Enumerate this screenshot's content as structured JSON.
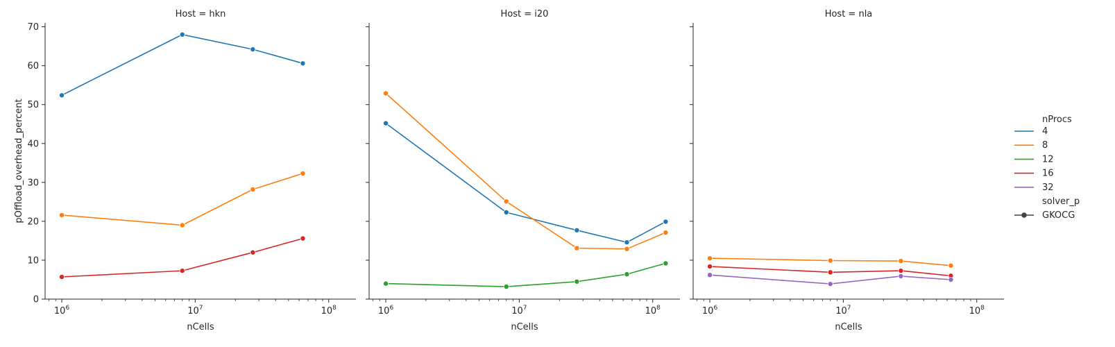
{
  "chart_data": {
    "type": "line",
    "x_scale": "log",
    "xlabel": "nCells",
    "ylabel": "pOffload_overhead_percent",
    "xlim": [
      750000,
      160000000
    ],
    "ylim": [
      0,
      71
    ],
    "x_ticks": [
      {
        "value": 1000000,
        "base": "10",
        "exp": "6"
      },
      {
        "value": 10000000,
        "base": "10",
        "exp": "7"
      },
      {
        "value": 100000000,
        "base": "10",
        "exp": "8"
      }
    ],
    "y_ticks": [
      {
        "value": 0,
        "label": "0"
      },
      {
        "value": 10,
        "label": "10"
      },
      {
        "value": 20,
        "label": "20"
      },
      {
        "value": 30,
        "label": "30"
      },
      {
        "value": 40,
        "label": "40"
      },
      {
        "value": 50,
        "label": "50"
      },
      {
        "value": 60,
        "label": "60"
      },
      {
        "value": 70,
        "label": "70"
      }
    ],
    "legend": {
      "position": "right",
      "hue_title": "nProcs",
      "hue_entries": [
        {
          "label": "4",
          "color": "#1f77b4"
        },
        {
          "label": "8",
          "color": "#ff7f0e"
        },
        {
          "label": "12",
          "color": "#2ca02c"
        },
        {
          "label": "16",
          "color": "#d62728"
        },
        {
          "label": "32",
          "color": "#9467bd"
        }
      ],
      "style_title": "solver_p",
      "style_entries": [
        {
          "label": "GKOCG",
          "color": "#444444"
        }
      ]
    },
    "facets": [
      {
        "title": "Host = hkn",
        "series": [
          {
            "name": "4",
            "color": "#1f77b4",
            "x": [
              1000000,
              8000000,
              27000000,
              64000000
            ],
            "y": [
              52.4,
              68.0,
              64.2,
              60.6
            ]
          },
          {
            "name": "8",
            "color": "#ff7f0e",
            "x": [
              1000000,
              8000000,
              27000000,
              64000000
            ],
            "y": [
              21.6,
              19.0,
              28.2,
              32.3
            ]
          },
          {
            "name": "16",
            "color": "#d62728",
            "x": [
              1000000,
              8000000,
              27000000,
              64000000
            ],
            "y": [
              5.7,
              7.3,
              12.0,
              15.6
            ]
          }
        ]
      },
      {
        "title": "Host = i20",
        "series": [
          {
            "name": "4",
            "color": "#1f77b4",
            "x": [
              1000000,
              8000000,
              27000000,
              64000000,
              125000000
            ],
            "y": [
              45.2,
              22.3,
              17.7,
              14.6,
              19.9
            ]
          },
          {
            "name": "8",
            "color": "#ff7f0e",
            "x": [
              1000000,
              8000000,
              27000000,
              64000000,
              125000000
            ],
            "y": [
              52.9,
              25.1,
              13.1,
              12.9,
              17.1
            ]
          },
          {
            "name": "12",
            "color": "#2ca02c",
            "x": [
              1000000,
              8000000,
              27000000,
              64000000,
              125000000
            ],
            "y": [
              4.0,
              3.2,
              4.5,
              6.4,
              9.2
            ]
          }
        ]
      },
      {
        "title": "Host = nla",
        "series": [
          {
            "name": "8",
            "color": "#ff7f0e",
            "x": [
              1000000,
              8000000,
              27000000,
              64000000
            ],
            "y": [
              10.5,
              9.9,
              9.8,
              8.6
            ]
          },
          {
            "name": "16",
            "color": "#d62728",
            "x": [
              1000000,
              8000000,
              27000000,
              64000000
            ],
            "y": [
              8.4,
              6.9,
              7.3,
              6.0
            ]
          },
          {
            "name": "32",
            "color": "#9467bd",
            "x": [
              1000000,
              8000000,
              27000000,
              64000000
            ],
            "y": [
              6.2,
              3.9,
              5.9,
              5.0
            ]
          }
        ]
      }
    ]
  }
}
